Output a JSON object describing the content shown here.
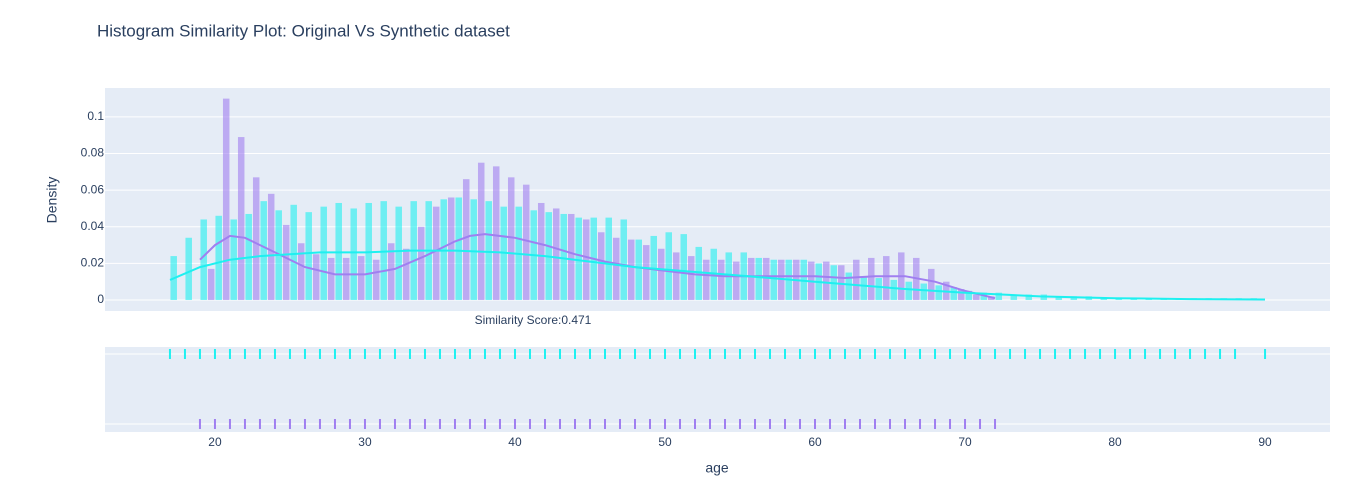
{
  "chart_data": {
    "type": "histogram",
    "title": "Histogram Similarity Plot: Original Vs Synthetic dataset",
    "x_label": "age",
    "y_label": "Density",
    "annotation": "Similarity Score:0.471",
    "xlim": [
      12.67,
      94.33
    ],
    "xticks": [
      20,
      30,
      40,
      50,
      60,
      70,
      80,
      90
    ],
    "ylim": [
      -0.006,
      0.1158
    ],
    "yticks": [
      0,
      0.02,
      0.04,
      0.06,
      0.08,
      0.1
    ],
    "grid": true,
    "series": [
      {
        "color": "#a07ff0",
        "bins": [
          19,
          20,
          21,
          22,
          23,
          24,
          25,
          26,
          27,
          28,
          29,
          30,
          31,
          32,
          33,
          34,
          35,
          36,
          37,
          38,
          39,
          40,
          41,
          42,
          43,
          44,
          45,
          46,
          47,
          48,
          49,
          50,
          51,
          52,
          53,
          54,
          55,
          56,
          57,
          58,
          59,
          60,
          61,
          62,
          63,
          64,
          65,
          66,
          67,
          68,
          69,
          70,
          71,
          72
        ],
        "values": [
          0.017,
          0.11,
          0.089,
          0.067,
          0.058,
          0.041,
          0.031,
          0.025,
          0.023,
          0.023,
          0.024,
          0.022,
          0.031,
          0.028,
          0.04,
          0.051,
          0.056,
          0.066,
          0.075,
          0.073,
          0.067,
          0.063,
          0.053,
          0.05,
          0.047,
          0.044,
          0.037,
          0.034,
          0.033,
          0.03,
          0.028,
          0.026,
          0.024,
          0.022,
          0.022,
          0.021,
          0.023,
          0.023,
          0.022,
          0.022,
          0.021,
          0.021,
          0.019,
          0.022,
          0.023,
          0.024,
          0.026,
          0.023,
          0.017,
          0.01,
          0.006,
          0.003,
          0.002
        ],
        "kde_x": [
          19,
          20,
          21,
          22,
          24,
          26,
          28,
          30,
          32,
          34,
          36,
          37,
          38,
          40,
          42,
          44,
          46,
          48,
          50,
          52,
          54,
          56,
          58,
          60,
          62,
          64,
          66,
          68,
          70,
          72
        ],
        "kde_y": [
          0.022,
          0.03,
          0.035,
          0.034,
          0.026,
          0.018,
          0.014,
          0.014,
          0.017,
          0.024,
          0.032,
          0.035,
          0.036,
          0.034,
          0.03,
          0.025,
          0.021,
          0.018,
          0.016,
          0.014,
          0.013,
          0.013,
          0.013,
          0.013,
          0.012,
          0.013,
          0.013,
          0.01,
          0.005,
          0.001
        ],
        "rug": [
          19,
          20,
          21,
          22,
          23,
          24,
          25,
          26,
          27,
          28,
          29,
          30,
          31,
          32,
          33,
          34,
          35,
          36,
          37,
          38,
          39,
          40,
          41,
          42,
          43,
          44,
          45,
          46,
          47,
          48,
          49,
          50,
          51,
          52,
          53,
          54,
          55,
          56,
          57,
          58,
          59,
          60,
          61,
          62,
          63,
          64,
          65,
          66,
          67,
          68,
          69,
          70,
          71,
          72
        ]
      },
      {
        "color": "#1ef0f0",
        "bins": [
          17,
          18,
          19,
          20,
          21,
          22,
          23,
          24,
          25,
          26,
          27,
          28,
          29,
          30,
          31,
          32,
          33,
          34,
          35,
          36,
          37,
          38,
          39,
          40,
          41,
          42,
          43,
          44,
          45,
          46,
          47,
          48,
          49,
          50,
          51,
          52,
          53,
          54,
          55,
          56,
          57,
          58,
          59,
          60,
          61,
          62,
          63,
          64,
          65,
          66,
          67,
          68,
          69,
          70,
          71,
          72,
          73,
          74,
          75,
          76,
          77,
          78,
          79,
          80,
          81,
          82,
          83,
          84,
          85,
          86,
          87,
          88,
          89,
          90
        ],
        "values": [
          0.024,
          0.034,
          0.044,
          0.046,
          0.044,
          0.047,
          0.054,
          0.049,
          0.052,
          0.048,
          0.051,
          0.053,
          0.05,
          0.053,
          0.054,
          0.051,
          0.054,
          0.054,
          0.055,
          0.056,
          0.055,
          0.054,
          0.051,
          0.051,
          0.049,
          0.048,
          0.047,
          0.045,
          0.045,
          0.045,
          0.044,
          0.033,
          0.035,
          0.037,
          0.036,
          0.029,
          0.028,
          0.026,
          0.026,
          0.023,
          0.022,
          0.022,
          0.022,
          0.02,
          0.019,
          0.015,
          0.013,
          0.012,
          0.011,
          0.01,
          0.009,
          0.008,
          0.007,
          0.005,
          0.004,
          0.004,
          0.003,
          0.003,
          0.003,
          0.002,
          0.002,
          0.002,
          0.001,
          0.001,
          0.001,
          0.001,
          0.001,
          0.001,
          0.001,
          0.001,
          0.001,
          0.001,
          0.001
        ],
        "kde_x": [
          17,
          19,
          21,
          23,
          25,
          27,
          30,
          33,
          36,
          39,
          42,
          45,
          48,
          51,
          54,
          57,
          60,
          63,
          66,
          70,
          75,
          80,
          85,
          90
        ],
        "kde_y": [
          0.011,
          0.018,
          0.022,
          0.024,
          0.025,
          0.026,
          0.026,
          0.027,
          0.027,
          0.026,
          0.024,
          0.021,
          0.018,
          0.016,
          0.014,
          0.012,
          0.01,
          0.008,
          0.006,
          0.004,
          0.002,
          0.001,
          0.0005,
          0.0003
        ],
        "rug": [
          17,
          18,
          19,
          20,
          21,
          22,
          23,
          24,
          25,
          26,
          27,
          28,
          29,
          30,
          31,
          32,
          33,
          34,
          35,
          36,
          37,
          38,
          39,
          40,
          41,
          42,
          43,
          44,
          45,
          46,
          47,
          48,
          49,
          50,
          51,
          52,
          53,
          54,
          55,
          56,
          57,
          58,
          59,
          60,
          61,
          62,
          63,
          64,
          65,
          66,
          67,
          68,
          69,
          70,
          71,
          72,
          73,
          74,
          75,
          76,
          77,
          78,
          79,
          80,
          81,
          82,
          83,
          84,
          85,
          86,
          87,
          88,
          90
        ]
      }
    ]
  }
}
